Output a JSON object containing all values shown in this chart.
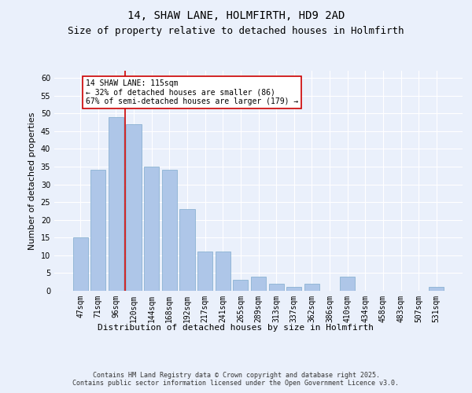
{
  "title1": "14, SHAW LANE, HOLMFIRTH, HD9 2AD",
  "title2": "Size of property relative to detached houses in Holmfirth",
  "xlabel": "Distribution of detached houses by size in Holmfirth",
  "ylabel": "Number of detached properties",
  "categories": [
    "47sqm",
    "71sqm",
    "96sqm",
    "120sqm",
    "144sqm",
    "168sqm",
    "192sqm",
    "217sqm",
    "241sqm",
    "265sqm",
    "289sqm",
    "313sqm",
    "337sqm",
    "362sqm",
    "386sqm",
    "410sqm",
    "434sqm",
    "458sqm",
    "483sqm",
    "507sqm",
    "531sqm"
  ],
  "values": [
    15,
    34,
    49,
    47,
    35,
    34,
    23,
    11,
    11,
    3,
    4,
    2,
    1,
    2,
    0,
    4,
    0,
    0,
    0,
    0,
    1
  ],
  "bar_color": "#aec6e8",
  "bar_edgecolor": "#7eaacc",
  "vline_color": "#cc0000",
  "vline_x_index": 2.5,
  "annotation_text": "14 SHAW LANE: 115sqm\n← 32% of detached houses are smaller (86)\n67% of semi-detached houses are larger (179) →",
  "annotation_box_color": "white",
  "annotation_box_edgecolor": "#cc0000",
  "ylim": [
    0,
    62
  ],
  "yticks": [
    0,
    5,
    10,
    15,
    20,
    25,
    30,
    35,
    40,
    45,
    50,
    55,
    60
  ],
  "bg_color": "#eaf0fb",
  "plot_bg_color": "#eaf0fb",
  "grid_color": "white",
  "footer": "Contains HM Land Registry data © Crown copyright and database right 2025.\nContains public sector information licensed under the Open Government Licence v3.0.",
  "title_fontsize": 10,
  "subtitle_fontsize": 9,
  "axis_label_fontsize": 8,
  "tick_fontsize": 7,
  "annotation_fontsize": 7,
  "footer_fontsize": 6
}
